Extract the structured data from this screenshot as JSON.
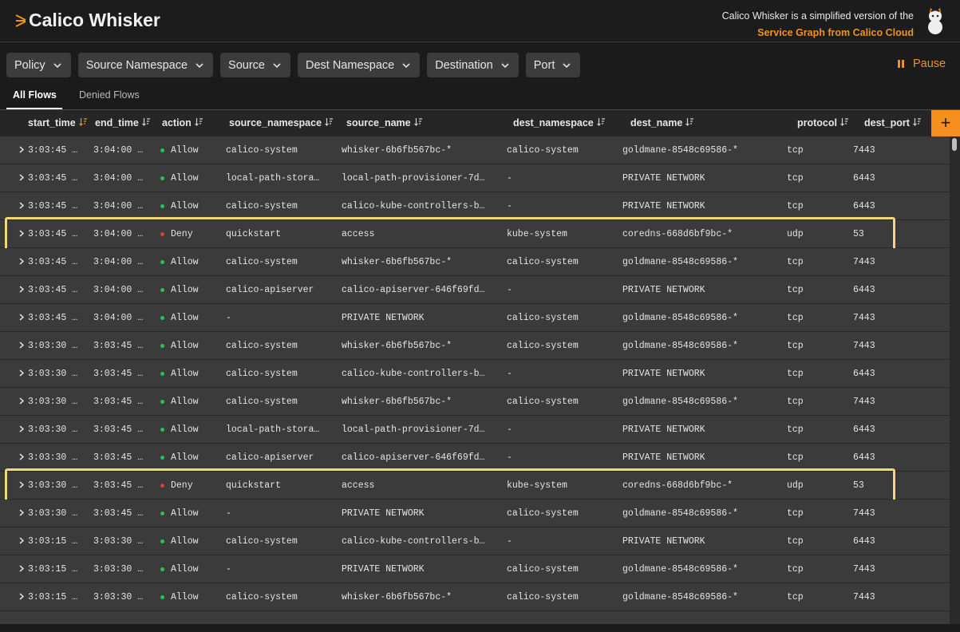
{
  "header": {
    "title": "Calico Whisker",
    "note": "Calico Whisker is a simplified version of the",
    "link": "Service Graph from Calico Cloud"
  },
  "filters": [
    "Policy",
    "Source Namespace",
    "Source",
    "Dest Namespace",
    "Destination",
    "Port"
  ],
  "pause": "Pause",
  "tabs": [
    "All Flows",
    "Denied Flows"
  ],
  "table": {
    "columns": [
      "start_time",
      "end_time",
      "action",
      "source_namespace",
      "source_name",
      "dest_namespace",
      "dest_name",
      "protocol",
      "dest_port"
    ],
    "rows": [
      [
        "3:03:45 …",
        "3:04:00 …",
        "Allow",
        "calico-system",
        "whisker-6b6fb567bc-*",
        "calico-system",
        "goldmane-8548c69586-*",
        "tcp",
        "7443"
      ],
      [
        "3:03:45 …",
        "3:04:00 …",
        "Allow",
        "local-path-stora…",
        "local-path-provisioner-7d…",
        "-",
        "PRIVATE NETWORK",
        "tcp",
        "6443"
      ],
      [
        "3:03:45 …",
        "3:04:00 …",
        "Allow",
        "calico-system",
        "calico-kube-controllers-b…",
        "-",
        "PRIVATE NETWORK",
        "tcp",
        "6443"
      ],
      [
        "3:03:45 …",
        "3:04:00 …",
        "Deny",
        "quickstart",
        "access",
        "kube-system",
        "coredns-668d6bf9bc-*",
        "udp",
        "53"
      ],
      [
        "3:03:45 …",
        "3:04:00 …",
        "Allow",
        "calico-system",
        "whisker-6b6fb567bc-*",
        "calico-system",
        "goldmane-8548c69586-*",
        "tcp",
        "7443"
      ],
      [
        "3:03:45 …",
        "3:04:00 …",
        "Allow",
        "calico-apiserver",
        "calico-apiserver-646f69fd…",
        "-",
        "PRIVATE NETWORK",
        "tcp",
        "6443"
      ],
      [
        "3:03:45 …",
        "3:04:00 …",
        "Allow",
        "-",
        "PRIVATE NETWORK",
        "calico-system",
        "goldmane-8548c69586-*",
        "tcp",
        "7443"
      ],
      [
        "3:03:30 …",
        "3:03:45 …",
        "Allow",
        "calico-system",
        "whisker-6b6fb567bc-*",
        "calico-system",
        "goldmane-8548c69586-*",
        "tcp",
        "7443"
      ],
      [
        "3:03:30 …",
        "3:03:45 …",
        "Allow",
        "calico-system",
        "calico-kube-controllers-b…",
        "-",
        "PRIVATE NETWORK",
        "tcp",
        "6443"
      ],
      [
        "3:03:30 …",
        "3:03:45 …",
        "Allow",
        "calico-system",
        "whisker-6b6fb567bc-*",
        "calico-system",
        "goldmane-8548c69586-*",
        "tcp",
        "7443"
      ],
      [
        "3:03:30 …",
        "3:03:45 …",
        "Allow",
        "local-path-stora…",
        "local-path-provisioner-7d…",
        "-",
        "PRIVATE NETWORK",
        "tcp",
        "6443"
      ],
      [
        "3:03:30 …",
        "3:03:45 …",
        "Allow",
        "calico-apiserver",
        "calico-apiserver-646f69fd…",
        "-",
        "PRIVATE NETWORK",
        "tcp",
        "6443"
      ],
      [
        "3:03:30 …",
        "3:03:45 …",
        "Deny",
        "quickstart",
        "access",
        "kube-system",
        "coredns-668d6bf9bc-*",
        "udp",
        "53"
      ],
      [
        "3:03:30 …",
        "3:03:45 …",
        "Allow",
        "-",
        "PRIVATE NETWORK",
        "calico-system",
        "goldmane-8548c69586-*",
        "tcp",
        "7443"
      ],
      [
        "3:03:15 …",
        "3:03:30 …",
        "Allow",
        "calico-system",
        "calico-kube-controllers-b…",
        "-",
        "PRIVATE NETWORK",
        "tcp",
        "6443"
      ],
      [
        "3:03:15 …",
        "3:03:30 …",
        "Allow",
        "-",
        "PRIVATE NETWORK",
        "calico-system",
        "goldmane-8548c69586-*",
        "tcp",
        "7443"
      ],
      [
        "3:03:15 …",
        "3:03:30 …",
        "Allow",
        "calico-system",
        "whisker-6b6fb567bc-*",
        "calico-system",
        "goldmane-8548c69586-*",
        "tcp",
        "7443"
      ]
    ]
  }
}
